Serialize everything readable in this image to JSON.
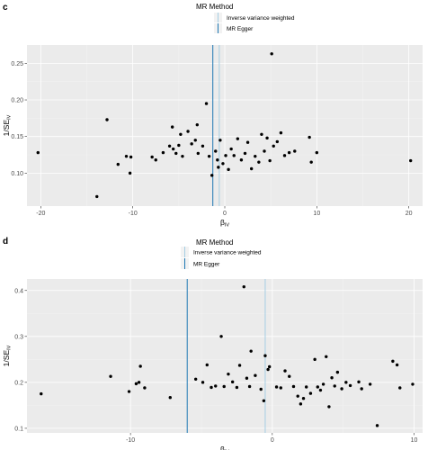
{
  "chart_data": [
    {
      "panel": "c",
      "type": "scatter",
      "xlabel": "β",
      "xlabel_sub": "IV",
      "ylabel": "1/SE",
      "ylabel_sub": "IV",
      "xlim": [
        -21.5,
        21.5
      ],
      "ylim": [
        0.055,
        0.275
      ],
      "xticks": [
        -20,
        -10,
        0,
        10,
        20
      ],
      "xtick_labels": [
        "-20",
        "-10",
        "0",
        "10",
        "20"
      ],
      "yticks": [
        0.1,
        0.15,
        0.2,
        0.25
      ],
      "ytick_labels": [
        "0.10",
        "0.15",
        "0.20",
        "0.25"
      ],
      "grid": true,
      "legend": {
        "title": "MR Method",
        "position": "top",
        "entries": [
          {
            "label": "Inverse variance weighted",
            "color": "#a6cee3"
          },
          {
            "label": "MR Egger",
            "color": "#1f78b4"
          }
        ]
      },
      "vlines": [
        {
          "method": "Inverse variance weighted",
          "x": -0.6,
          "color": "#a6cee3"
        },
        {
          "method": "MR Egger",
          "x": -1.3,
          "color": "#1f78b4"
        }
      ],
      "points": [
        {
          "x": -20.3,
          "y": 0.128
        },
        {
          "x": -13.9,
          "y": 0.068
        },
        {
          "x": -12.8,
          "y": 0.173
        },
        {
          "x": -11.6,
          "y": 0.112
        },
        {
          "x": -10.7,
          "y": 0.123
        },
        {
          "x": -10.3,
          "y": 0.1
        },
        {
          "x": -10.2,
          "y": 0.122
        },
        {
          "x": -7.9,
          "y": 0.122
        },
        {
          "x": -7.5,
          "y": 0.118
        },
        {
          "x": -6.7,
          "y": 0.128
        },
        {
          "x": -6.0,
          "y": 0.137
        },
        {
          "x": -5.7,
          "y": 0.163
        },
        {
          "x": -5.6,
          "y": 0.133
        },
        {
          "x": -5.3,
          "y": 0.127
        },
        {
          "x": -5.0,
          "y": 0.138
        },
        {
          "x": -4.8,
          "y": 0.153
        },
        {
          "x": -4.6,
          "y": 0.123
        },
        {
          "x": -4.0,
          "y": 0.157
        },
        {
          "x": -3.6,
          "y": 0.14
        },
        {
          "x": -3.2,
          "y": 0.145
        },
        {
          "x": -3.0,
          "y": 0.166
        },
        {
          "x": -2.9,
          "y": 0.127
        },
        {
          "x": -2.4,
          "y": 0.137
        },
        {
          "x": -2.0,
          "y": 0.195
        },
        {
          "x": -1.7,
          "y": 0.123
        },
        {
          "x": -1.4,
          "y": 0.097
        },
        {
          "x": -1.0,
          "y": 0.13
        },
        {
          "x": -0.8,
          "y": 0.118
        },
        {
          "x": -0.7,
          "y": 0.108
        },
        {
          "x": -0.5,
          "y": 0.145
        },
        {
          "x": -0.2,
          "y": 0.113
        },
        {
          "x": 0.1,
          "y": 0.124
        },
        {
          "x": 0.4,
          "y": 0.105
        },
        {
          "x": 0.7,
          "y": 0.133
        },
        {
          "x": 1.0,
          "y": 0.124
        },
        {
          "x": 1.4,
          "y": 0.147
        },
        {
          "x": 1.8,
          "y": 0.118
        },
        {
          "x": 2.2,
          "y": 0.127
        },
        {
          "x": 2.5,
          "y": 0.142
        },
        {
          "x": 2.9,
          "y": 0.106
        },
        {
          "x": 3.3,
          "y": 0.123
        },
        {
          "x": 3.7,
          "y": 0.115
        },
        {
          "x": 4.0,
          "y": 0.153
        },
        {
          "x": 4.3,
          "y": 0.13
        },
        {
          "x": 4.6,
          "y": 0.148
        },
        {
          "x": 4.9,
          "y": 0.117
        },
        {
          "x": 5.1,
          "y": 0.263
        },
        {
          "x": 5.3,
          "y": 0.137
        },
        {
          "x": 5.7,
          "y": 0.143
        },
        {
          "x": 6.1,
          "y": 0.155
        },
        {
          "x": 6.5,
          "y": 0.124
        },
        {
          "x": 7.0,
          "y": 0.128
        },
        {
          "x": 7.6,
          "y": 0.13
        },
        {
          "x": 9.2,
          "y": 0.149
        },
        {
          "x": 9.4,
          "y": 0.115
        },
        {
          "x": 10.0,
          "y": 0.128
        },
        {
          "x": 20.2,
          "y": 0.117
        }
      ]
    },
    {
      "panel": "d",
      "type": "scatter",
      "xlabel": "β",
      "xlabel_sub": "IV",
      "ylabel": "1/SE",
      "ylabel_sub": "IV",
      "xlim": [
        -17.3,
        10.6
      ],
      "ylim": [
        0.09,
        0.425
      ],
      "xticks": [
        -10,
        0,
        10
      ],
      "xtick_labels": [
        "-10",
        "0",
        "10"
      ],
      "yticks": [
        0.1,
        0.2,
        0.3,
        0.4
      ],
      "ytick_labels": [
        "0.1",
        "0.2",
        "0.3",
        "0.4"
      ],
      "grid": true,
      "legend": {
        "title": "MR Method",
        "position": "top",
        "entries": [
          {
            "label": "Inverse variance weighted",
            "color": "#a6cee3"
          },
          {
            "label": "MR Egger",
            "color": "#1f78b4"
          }
        ]
      },
      "vlines": [
        {
          "method": "Inverse variance weighted",
          "x": -0.5,
          "color": "#a6cee3"
        },
        {
          "method": "MR Egger",
          "x": -6.0,
          "color": "#1f78b4"
        }
      ],
      "points": [
        {
          "x": -16.3,
          "y": 0.175
        },
        {
          "x": -11.4,
          "y": 0.213
        },
        {
          "x": -10.1,
          "y": 0.18
        },
        {
          "x": -9.6,
          "y": 0.197
        },
        {
          "x": -9.4,
          "y": 0.2
        },
        {
          "x": -9.3,
          "y": 0.235
        },
        {
          "x": -9.0,
          "y": 0.188
        },
        {
          "x": -7.2,
          "y": 0.167
        },
        {
          "x": -5.4,
          "y": 0.207
        },
        {
          "x": -4.9,
          "y": 0.2
        },
        {
          "x": -4.6,
          "y": 0.238
        },
        {
          "x": -4.3,
          "y": 0.189
        },
        {
          "x": -4.0,
          "y": 0.192
        },
        {
          "x": -3.6,
          "y": 0.3
        },
        {
          "x": -3.4,
          "y": 0.191
        },
        {
          "x": -3.1,
          "y": 0.218
        },
        {
          "x": -2.8,
          "y": 0.201
        },
        {
          "x": -2.5,
          "y": 0.189
        },
        {
          "x": -2.3,
          "y": 0.237
        },
        {
          "x": -2.0,
          "y": 0.408
        },
        {
          "x": -1.8,
          "y": 0.209
        },
        {
          "x": -1.6,
          "y": 0.191
        },
        {
          "x": -1.5,
          "y": 0.268
        },
        {
          "x": -1.2,
          "y": 0.215
        },
        {
          "x": -0.8,
          "y": 0.185
        },
        {
          "x": -0.6,
          "y": 0.16
        },
        {
          "x": -0.5,
          "y": 0.258
        },
        {
          "x": -0.3,
          "y": 0.228
        },
        {
          "x": -0.2,
          "y": 0.234
        },
        {
          "x": 0.3,
          "y": 0.19
        },
        {
          "x": 0.6,
          "y": 0.188
        },
        {
          "x": 0.9,
          "y": 0.225
        },
        {
          "x": 1.2,
          "y": 0.213
        },
        {
          "x": 1.5,
          "y": 0.191
        },
        {
          "x": 1.8,
          "y": 0.17
        },
        {
          "x": 2.0,
          "y": 0.153
        },
        {
          "x": 2.2,
          "y": 0.165
        },
        {
          "x": 2.4,
          "y": 0.19
        },
        {
          "x": 2.7,
          "y": 0.176
        },
        {
          "x": 3.0,
          "y": 0.25
        },
        {
          "x": 3.2,
          "y": 0.19
        },
        {
          "x": 3.4,
          "y": 0.183
        },
        {
          "x": 3.6,
          "y": 0.196
        },
        {
          "x": 3.8,
          "y": 0.256
        },
        {
          "x": 4.0,
          "y": 0.147
        },
        {
          "x": 4.2,
          "y": 0.21
        },
        {
          "x": 4.4,
          "y": 0.192
        },
        {
          "x": 4.6,
          "y": 0.222
        },
        {
          "x": 4.9,
          "y": 0.186
        },
        {
          "x": 5.2,
          "y": 0.2
        },
        {
          "x": 5.5,
          "y": 0.193
        },
        {
          "x": 6.1,
          "y": 0.201
        },
        {
          "x": 6.3,
          "y": 0.186
        },
        {
          "x": 6.9,
          "y": 0.196
        },
        {
          "x": 7.4,
          "y": 0.106
        },
        {
          "x": 8.5,
          "y": 0.246
        },
        {
          "x": 8.8,
          "y": 0.238
        },
        {
          "x": 9.0,
          "y": 0.188
        },
        {
          "x": 9.9,
          "y": 0.196
        }
      ]
    }
  ]
}
